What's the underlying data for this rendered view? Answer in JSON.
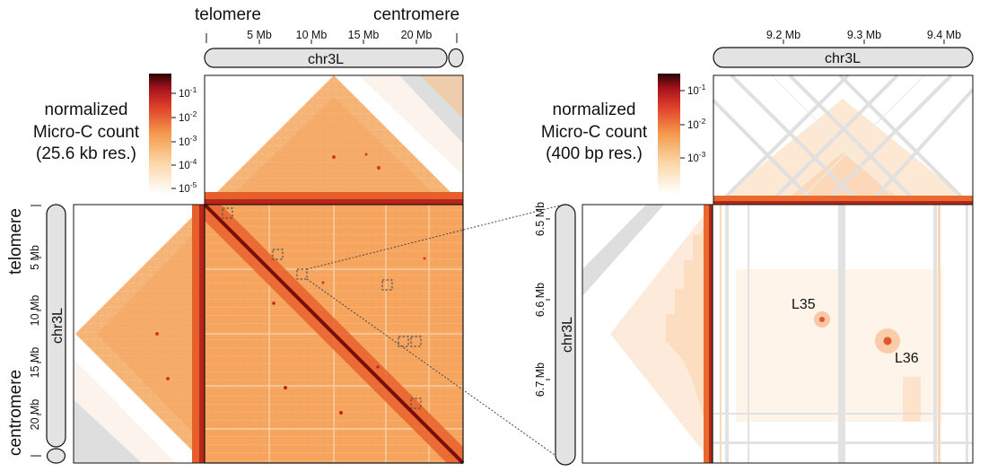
{
  "left_panel": {
    "label_telomere": "telomere",
    "label_centromere": "centromere",
    "chromosome": "chr3L",
    "x_ticks": [
      "5 Mb",
      "10 Mb",
      "15 Mb",
      "20 Mb"
    ],
    "y_ticks": [
      "5 Mb",
      "10 Mb",
      "15 Mb",
      "20 Mb"
    ],
    "colorbar_title": [
      "normalized",
      "Micro-C count",
      "(25.6 kb res.)"
    ],
    "colorbar_ticks": [
      {
        "base": "10",
        "exp": "-1"
      },
      {
        "base": "10",
        "exp": "-2"
      },
      {
        "base": "10",
        "exp": "-3"
      },
      {
        "base": "10",
        "exp": "-4"
      },
      {
        "base": "10",
        "exp": "-5"
      }
    ]
  },
  "right_panel": {
    "chromosome": "chr3L",
    "x_ticks": [
      "9.2 Mb",
      "9.3 Mb",
      "9.4 Mb"
    ],
    "y_ticks": [
      "6.5 Mb",
      "6.6 Mb",
      "6.7 Mb"
    ],
    "colorbar_title": [
      "normalized",
      "Micro-C count",
      "(400 bp res.)"
    ],
    "colorbar_ticks": [
      {
        "base": "10",
        "exp": "-1"
      },
      {
        "base": "10",
        "exp": "-2"
      },
      {
        "base": "10",
        "exp": "-3"
      }
    ],
    "loop_labels": [
      "L35",
      "L36"
    ]
  },
  "colors": {
    "heat_dark": "#7a0d0d",
    "heat_red": "#d2281f",
    "heat_orange": "#ef8a3e",
    "heat_light": "#f8c994",
    "chromosome_fill": "#e3e3e3",
    "missing_gray": "#dedede"
  }
}
